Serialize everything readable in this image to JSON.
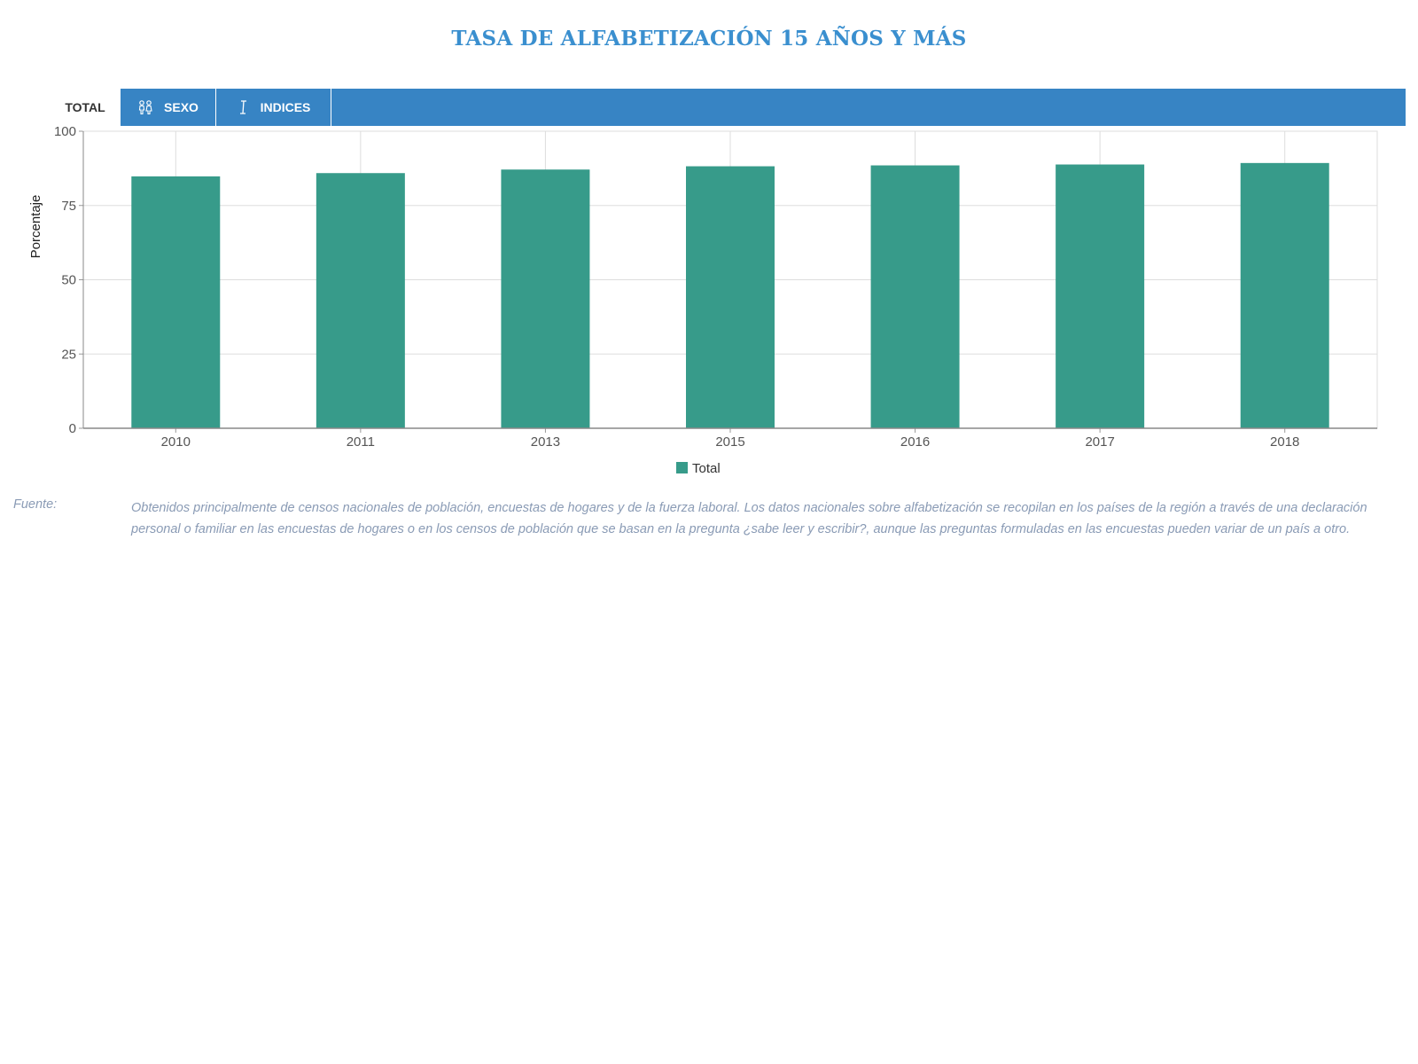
{
  "title": "TASA DE ALFABETIZACIÓN 15 AÑOS Y MÁS",
  "tabs": [
    {
      "label": "TOTAL",
      "icon": "",
      "active": true
    },
    {
      "label": "SEXO",
      "icon": "gender-icon",
      "active": false
    },
    {
      "label": "INDICES",
      "icon": "cursor-icon",
      "active": false
    }
  ],
  "chart_data": {
    "type": "bar",
    "categories": [
      "2010",
      "2011",
      "2013",
      "2015",
      "2016",
      "2017",
      "2018"
    ],
    "series": [
      {
        "name": "Total",
        "values": [
          84.8,
          85.9,
          87.1,
          88.2,
          88.5,
          88.8,
          89.3
        ],
        "color": "#379b8a"
      }
    ],
    "ylabel": "Porcentaje",
    "ylim": [
      0,
      100
    ],
    "yticks": [
      0,
      25,
      50,
      75,
      100
    ],
    "grid": true,
    "legend": "bottom-center"
  },
  "source": {
    "label": "Fuente:",
    "text": "Obtenidos principalmente de censos nacionales de población, encuestas de hogares y de la fuerza laboral. Los datos nacionales sobre alfabetización se recopilan en los países de la región a través de una declaración personal o familiar en las encuestas de hogares o en los censos de población que se basan en la pregunta ¿sabe leer y escribir?, aunque las preguntas formuladas en las encuestas pueden variar de un país a otro."
  }
}
